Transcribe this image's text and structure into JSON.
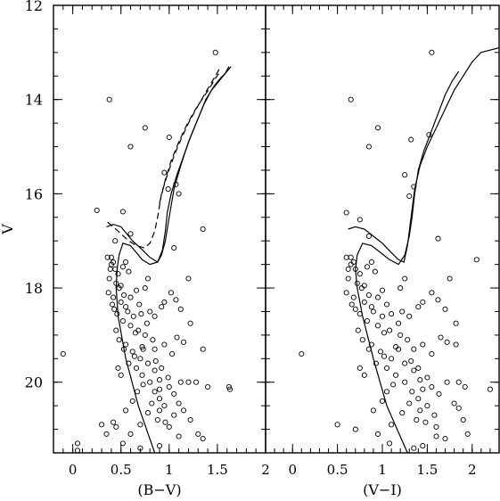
{
  "chart_data": [
    {
      "type": "scatter",
      "xlabel": "(B−V)",
      "ylabel": "V",
      "xlim": [
        -0.2,
        2.0
      ],
      "ylim": [
        21.5,
        12.0
      ],
      "x_inverted": false,
      "y_inverted": true,
      "xticks": [
        0,
        0.5,
        1,
        1.5,
        2
      ],
      "xtick_labels": [
        "0",
        "0.5",
        "1",
        "1.5",
        "2"
      ],
      "yticks": [
        12,
        14,
        16,
        18,
        20
      ],
      "ytick_labels": [
        "12",
        "14",
        "16",
        "18",
        "20"
      ],
      "points": [
        [
          1.48,
          13.0
        ],
        [
          0.38,
          14.0
        ],
        [
          0.75,
          14.6
        ],
        [
          1.0,
          14.8
        ],
        [
          0.6,
          15.0
        ],
        [
          0.95,
          15.55
        ],
        [
          1.07,
          15.8
        ],
        [
          0.99,
          15.9
        ],
        [
          1.1,
          16.0
        ],
        [
          0.25,
          16.35
        ],
        [
          0.52,
          16.38
        ],
        [
          0.6,
          16.85
        ],
        [
          1.05,
          17.15
        ],
        [
          1.35,
          16.75
        ],
        [
          0.44,
          17.0
        ],
        [
          0.36,
          17.35
        ],
        [
          0.4,
          17.5
        ],
        [
          0.44,
          17.6
        ],
        [
          0.38,
          17.8
        ],
        [
          0.45,
          17.9
        ],
        [
          0.5,
          17.95
        ],
        [
          0.37,
          18.1
        ],
        [
          0.42,
          18.2
        ],
        [
          0.5,
          18.3
        ],
        [
          0.55,
          18.4
        ],
        [
          0.46,
          18.55
        ],
        [
          0.52,
          18.7
        ],
        [
          0.6,
          18.8
        ],
        [
          0.65,
          18.95
        ],
        [
          0.48,
          19.1
        ],
        [
          0.55,
          19.2
        ],
        [
          0.62,
          19.35
        ],
        [
          0.7,
          19.5
        ],
        [
          0.58,
          19.6
        ],
        [
          0.66,
          19.7
        ],
        [
          0.72,
          19.85
        ],
        [
          0.8,
          20.0
        ],
        [
          0.85,
          20.2
        ],
        [
          0.9,
          20.35
        ],
        [
          0.95,
          20.5
        ],
        [
          0.78,
          20.65
        ],
        [
          0.88,
          20.8
        ],
        [
          0.9,
          20.15
        ],
        [
          0.82,
          20.45
        ],
        [
          1.0,
          20.95
        ],
        [
          0.4,
          17.35
        ],
        [
          0.42,
          17.45
        ],
        [
          0.39,
          17.6
        ],
        [
          0.47,
          17.7
        ],
        [
          0.52,
          17.55
        ],
        [
          0.55,
          17.45
        ],
        [
          0.58,
          17.65
        ],
        [
          0.48,
          18.0
        ],
        [
          0.53,
          18.15
        ],
        [
          0.41,
          18.35
        ],
        [
          0.57,
          18.5
        ],
        [
          0.63,
          18.6
        ],
        [
          0.68,
          18.9
        ],
        [
          0.75,
          19.0
        ],
        [
          0.72,
          19.25
        ],
        [
          0.64,
          19.45
        ],
        [
          0.78,
          19.6
        ],
        [
          0.85,
          19.75
        ],
        [
          0.9,
          19.95
        ],
        [
          1.0,
          20.1
        ],
        [
          1.05,
          20.25
        ],
        [
          1.12,
          20.0
        ],
        [
          1.2,
          20.0
        ],
        [
          1.28,
          20.0
        ],
        [
          1.4,
          20.1
        ],
        [
          1.62,
          20.1
        ],
        [
          1.63,
          20.15
        ],
        [
          1.1,
          20.45
        ],
        [
          1.15,
          20.6
        ],
        [
          1.22,
          20.8
        ],
        [
          1.3,
          21.1
        ],
        [
          1.35,
          21.2
        ],
        [
          0.7,
          20.9
        ],
        [
          0.6,
          21.1
        ],
        [
          0.3,
          20.9
        ],
        [
          0.42,
          20.85
        ],
        [
          0.45,
          20.95
        ],
        [
          0.35,
          21.1
        ],
        [
          0.52,
          21.3
        ],
        [
          0.7,
          21.4
        ],
        [
          0.9,
          21.35
        ],
        [
          1.1,
          21.15
        ],
        [
          0.05,
          21.3
        ],
        [
          0.05,
          21.45
        ],
        [
          -0.1,
          19.4
        ],
        [
          0.75,
          18.0
        ],
        [
          0.78,
          17.8
        ],
        [
          0.95,
          18.3
        ],
        [
          1.02,
          18.1
        ],
        [
          1.07,
          18.25
        ],
        [
          1.12,
          18.45
        ],
        [
          1.2,
          17.8
        ],
        [
          1.22,
          18.75
        ],
        [
          0.85,
          18.6
        ],
        [
          0.92,
          18.4
        ],
        [
          0.83,
          19.1
        ],
        [
          0.95,
          19.2
        ],
        [
          1.03,
          19.4
        ],
        [
          1.08,
          19.05
        ],
        [
          1.15,
          19.15
        ],
        [
          1.35,
          19.3
        ],
        [
          0.73,
          19.3
        ],
        [
          0.86,
          19.55
        ],
        [
          0.92,
          19.7
        ],
        [
          0.99,
          19.9
        ],
        [
          0.9,
          20.6
        ],
        [
          1.05,
          20.7
        ],
        [
          0.96,
          20.85
        ],
        [
          0.55,
          20.6
        ],
        [
          0.62,
          20.4
        ],
        [
          0.67,
          20.2
        ],
        [
          0.73,
          20.05
        ],
        [
          0.47,
          19.7
        ],
        [
          0.5,
          19.85
        ],
        [
          0.53,
          19.3
        ],
        [
          0.45,
          18.9
        ],
        [
          0.43,
          18.45
        ],
        [
          0.6,
          18.2
        ],
        [
          0.66,
          18.05
        ],
        [
          0.69,
          18.35
        ],
        [
          0.71,
          18.55
        ],
        [
          0.77,
          18.75
        ],
        [
          0.8,
          18.5
        ],
        [
          0.85,
          19.3
        ]
      ],
      "isochrones": [
        {
          "style": "solid",
          "x": [
            0.85,
            0.68,
            0.55,
            0.47,
            0.45,
            0.46,
            0.48,
            0.52,
            0.6,
            0.66,
            0.72,
            0.8,
            0.88,
            0.93,
            0.96,
            0.98,
            1.02,
            1.08,
            1.15,
            1.22,
            1.3,
            1.38,
            1.47,
            1.53,
            1.58,
            1.62
          ],
          "y": [
            21.5,
            20.5,
            19.5,
            18.6,
            18.0,
            17.6,
            17.3,
            17.05,
            17.1,
            17.25,
            17.4,
            17.5,
            17.45,
            17.2,
            16.8,
            16.4,
            16.0,
            15.6,
            15.2,
            14.8,
            14.4,
            14.0,
            13.7,
            13.55,
            13.45,
            13.3
          ]
        },
        {
          "style": "solid",
          "x": [
            0.35,
            0.42,
            0.5,
            0.56,
            0.62,
            0.7,
            0.8,
            0.88,
            0.92,
            0.96,
            1.0,
            1.05,
            1.12,
            1.2,
            1.28,
            1.36,
            1.44,
            1.52,
            1.6,
            1.64
          ],
          "y": [
            16.7,
            16.65,
            16.7,
            16.85,
            17.0,
            17.15,
            17.35,
            17.45,
            17.3,
            17.0,
            16.5,
            15.9,
            15.4,
            14.9,
            14.5,
            14.1,
            13.8,
            13.6,
            13.4,
            13.3
          ]
        },
        {
          "style": "dashed",
          "x": [
            0.36,
            0.42,
            0.5,
            0.58,
            0.66,
            0.74,
            0.8,
            0.85,
            0.88,
            0.92,
            0.98,
            1.05,
            1.12,
            1.2,
            1.28,
            1.35,
            1.42,
            1.48,
            1.52
          ],
          "y": [
            16.6,
            16.7,
            16.85,
            17.0,
            17.1,
            17.15,
            17.05,
            16.8,
            16.5,
            16.0,
            15.6,
            15.2,
            14.85,
            14.5,
            14.2,
            13.95,
            13.7,
            13.5,
            13.35
          ]
        },
        {
          "style": "dashed",
          "x": [
            0.9,
            0.96,
            1.02,
            1.1,
            1.18,
            1.26,
            1.34,
            1.42,
            1.48,
            1.53
          ],
          "y": [
            16.2,
            15.7,
            15.3,
            14.9,
            14.55,
            14.25,
            14.0,
            13.75,
            13.55,
            13.4
          ]
        }
      ]
    },
    {
      "type": "scatter",
      "xlabel": "(V−I)",
      "ylabel": "",
      "xlim": [
        -0.3,
        2.3
      ],
      "ylim": [
        21.5,
        12.0
      ],
      "x_inverted": false,
      "y_inverted": true,
      "xticks": [
        0,
        0.5,
        1,
        1.5,
        2
      ],
      "xtick_labels": [
        "0",
        "0.5",
        "1",
        "1.5",
        "2"
      ],
      "yticks": [
        12,
        14,
        16,
        18,
        20
      ],
      "ytick_labels": [],
      "points": [
        [
          1.55,
          13.0
        ],
        [
          0.65,
          14.0
        ],
        [
          0.95,
          14.6
        ],
        [
          1.52,
          14.75
        ],
        [
          0.85,
          15.0
        ],
        [
          1.32,
          14.85
        ],
        [
          1.25,
          15.6
        ],
        [
          1.35,
          15.85
        ],
        [
          1.3,
          16.05
        ],
        [
          0.6,
          16.4
        ],
        [
          0.75,
          16.55
        ],
        [
          0.85,
          16.9
        ],
        [
          1.62,
          16.95
        ],
        [
          2.05,
          17.4
        ],
        [
          0.6,
          17.35
        ],
        [
          0.65,
          17.5
        ],
        [
          0.7,
          17.6
        ],
        [
          0.62,
          17.8
        ],
        [
          0.72,
          17.9
        ],
        [
          0.8,
          17.95
        ],
        [
          0.6,
          18.1
        ],
        [
          0.68,
          18.2
        ],
        [
          0.8,
          18.3
        ],
        [
          0.88,
          18.4
        ],
        [
          0.75,
          18.55
        ],
        [
          0.83,
          18.7
        ],
        [
          0.95,
          18.8
        ],
        [
          1.02,
          18.95
        ],
        [
          0.78,
          19.1
        ],
        [
          0.88,
          19.2
        ],
        [
          0.98,
          19.35
        ],
        [
          1.1,
          19.5
        ],
        [
          0.93,
          19.6
        ],
        [
          1.05,
          19.7
        ],
        [
          1.15,
          19.85
        ],
        [
          1.25,
          20.0
        ],
        [
          1.33,
          20.2
        ],
        [
          1.4,
          20.35
        ],
        [
          1.5,
          20.5
        ],
        [
          1.22,
          20.65
        ],
        [
          1.38,
          20.8
        ],
        [
          1.45,
          20.15
        ],
        [
          1.3,
          20.45
        ],
        [
          1.6,
          20.95
        ],
        [
          0.65,
          17.35
        ],
        [
          0.68,
          17.45
        ],
        [
          0.62,
          17.6
        ],
        [
          0.75,
          17.7
        ],
        [
          0.83,
          17.55
        ],
        [
          0.88,
          17.45
        ],
        [
          0.92,
          17.65
        ],
        [
          0.77,
          18.0
        ],
        [
          0.85,
          18.15
        ],
        [
          0.66,
          18.35
        ],
        [
          0.9,
          18.5
        ],
        [
          1.0,
          18.6
        ],
        [
          1.08,
          18.9
        ],
        [
          1.2,
          19.0
        ],
        [
          1.15,
          19.25
        ],
        [
          1.02,
          19.45
        ],
        [
          1.25,
          19.6
        ],
        [
          1.35,
          19.75
        ],
        [
          1.42,
          19.95
        ],
        [
          1.55,
          20.1
        ],
        [
          1.63,
          20.25
        ],
        [
          1.72,
          20.0
        ],
        [
          1.85,
          20.0
        ],
        [
          1.92,
          20.1
        ],
        [
          2.2,
          20.15
        ],
        [
          1.8,
          20.45
        ],
        [
          1.85,
          20.55
        ],
        [
          1.9,
          20.8
        ],
        [
          1.95,
          21.1
        ],
        [
          1.7,
          21.2
        ],
        [
          1.1,
          20.9
        ],
        [
          0.95,
          21.1
        ],
        [
          0.5,
          20.9
        ],
        [
          0.7,
          21.0
        ],
        [
          1.08,
          21.3
        ],
        [
          1.35,
          21.4
        ],
        [
          1.45,
          21.35
        ],
        [
          1.6,
          21.15
        ],
        [
          0.1,
          19.4
        ],
        [
          1.2,
          18.0
        ],
        [
          1.25,
          17.8
        ],
        [
          1.45,
          18.3
        ],
        [
          1.55,
          18.1
        ],
        [
          1.62,
          18.25
        ],
        [
          1.7,
          18.45
        ],
        [
          1.75,
          17.8
        ],
        [
          1.82,
          18.75
        ],
        [
          1.3,
          18.6
        ],
        [
          1.4,
          18.4
        ],
        [
          1.28,
          19.1
        ],
        [
          1.45,
          19.2
        ],
        [
          1.55,
          19.4
        ],
        [
          1.65,
          19.05
        ],
        [
          1.72,
          19.15
        ],
        [
          1.82,
          19.2
        ],
        [
          1.18,
          19.3
        ],
        [
          1.32,
          19.55
        ],
        [
          1.4,
          19.7
        ],
        [
          1.5,
          19.9
        ],
        [
          1.42,
          20.6
        ],
        [
          1.58,
          20.7
        ],
        [
          1.48,
          20.85
        ],
        [
          0.9,
          20.6
        ],
        [
          1.0,
          20.4
        ],
        [
          1.05,
          20.2
        ],
        [
          1.12,
          20.05
        ],
        [
          0.75,
          19.7
        ],
        [
          0.8,
          19.85
        ],
        [
          0.85,
          19.3
        ],
        [
          0.73,
          18.9
        ],
        [
          0.7,
          18.45
        ],
        [
          0.95,
          18.2
        ],
        [
          1.0,
          18.05
        ],
        [
          1.05,
          18.35
        ],
        [
          1.1,
          18.55
        ],
        [
          1.18,
          18.75
        ],
        [
          1.22,
          18.5
        ],
        [
          1.35,
          19.3
        ]
      ],
      "isochrones": [
        {
          "style": "solid",
          "x": [
            1.28,
            1.05,
            0.9,
            0.78,
            0.72,
            0.7,
            0.72,
            0.78,
            0.88,
            0.98,
            1.08,
            1.18,
            1.25,
            1.3,
            1.33,
            1.36,
            1.4,
            1.46,
            1.54,
            1.62,
            1.7,
            1.78,
            1.85
          ],
          "y": [
            21.5,
            20.5,
            19.5,
            18.6,
            18.0,
            17.6,
            17.3,
            17.05,
            17.1,
            17.25,
            17.4,
            17.5,
            17.3,
            16.9,
            16.5,
            16.0,
            15.5,
            15.1,
            14.7,
            14.3,
            13.9,
            13.6,
            13.4
          ]
        },
        {
          "style": "solid",
          "x": [
            0.62,
            0.7,
            0.8,
            0.9,
            1.0,
            1.1,
            1.18,
            1.24,
            1.28,
            1.32,
            1.36,
            1.42,
            1.5,
            1.6,
            1.7,
            1.8,
            1.9,
            2.0,
            2.1,
            2.2,
            2.3
          ],
          "y": [
            16.75,
            16.7,
            16.75,
            16.9,
            17.05,
            17.25,
            17.4,
            17.45,
            17.1,
            16.5,
            15.9,
            15.4,
            15.0,
            14.6,
            14.2,
            13.8,
            13.5,
            13.2,
            13.0,
            12.95,
            12.9
          ]
        }
      ]
    }
  ]
}
